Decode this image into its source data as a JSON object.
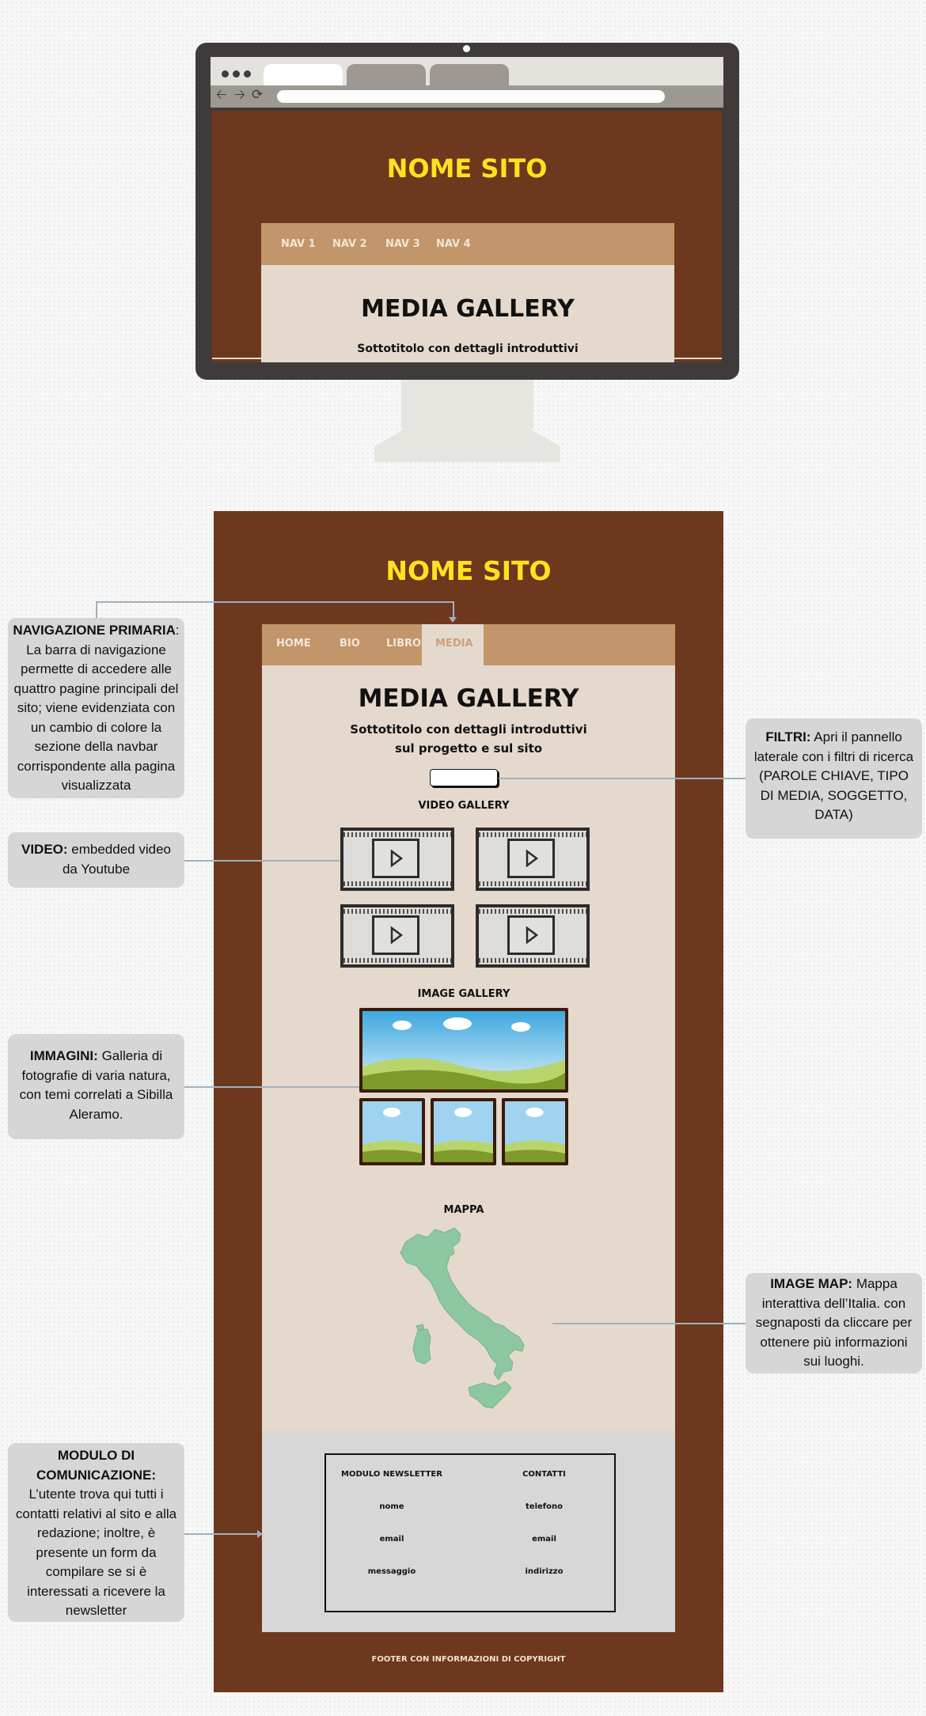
{
  "monitor": {
    "site_title": "NOME SITO",
    "nav": [
      "NAV 1",
      "NAV 2",
      "NAV 3",
      "NAV 4"
    ],
    "heading": "MEDIA GALLERY",
    "subtitle": "Sottotitolo con dettagli introduttivi"
  },
  "site": {
    "title": "NOME SITO",
    "nav": [
      "HOME",
      "BIO",
      "LIBRO",
      "MEDIA"
    ],
    "active_nav": "MEDIA",
    "heading": "MEDIA GALLERY",
    "subtitle_1": "Sottotitolo con dettagli introduttivi",
    "subtitle_2": "sul progetto e sul sito",
    "video_label": "VIDEO GALLERY",
    "image_label": "IMAGE GALLERY",
    "map_label": "MAPPA",
    "form": {
      "newsletter_title": "MODULO NEWSLETTER",
      "newsletter_fields": [
        "nome",
        "email",
        "messaggio"
      ],
      "contacts_title": "CONTATTI",
      "contact_fields": [
        "telefono",
        "email",
        "indirizzo"
      ]
    },
    "footer": "FOOTER CON INFORMAZIONI DI COPYRIGHT"
  },
  "callouts": {
    "nav": {
      "title": "NAVIGAZIONE PRIMARIA",
      "sep": ":",
      "text": "La barra di navigazione permette di accedere alle quattro pagine principali del sito; viene evidenziata con un cambio di colore la sezione della navbar corrispondente alla pagina visualizzata"
    },
    "video": {
      "title": "VIDEO:",
      "text": "embedded video da Youtube"
    },
    "images": {
      "title": "IMMAGINI:",
      "text": "Galleria di fotografie di varia natura, con temi correlati a Sibilla Aleramo."
    },
    "communication": {
      "title": "MODULO DI COMUNICAZIONE:",
      "text": "L’utente trova qui tutti i contatti relativi al sito e alla redazione; inoltre, è presente un form da compilare se si è interessati a ricevere la newsletter"
    },
    "filters": {
      "title": "FILTRI:",
      "text": "Apri il pannello laterale con i filtri di ricerca (PAROLE CHIAVE, TIPO DI MEDIA, SOGGETTO, DATA)"
    },
    "map": {
      "title": "IMAGE MAP:",
      "text": "Mappa interattiva dell’Italia. con segnaposti da cliccare per ottenere più informazioni sui luoghi."
    }
  },
  "colors": {
    "page_brown": "#6e381f",
    "title_yellow": "#ffe21f",
    "navbar_tan": "#c2966a",
    "content_beige": "#e5d9cd",
    "map_green": "#8dc79f",
    "callout_gray": "#d6d6d6"
  }
}
